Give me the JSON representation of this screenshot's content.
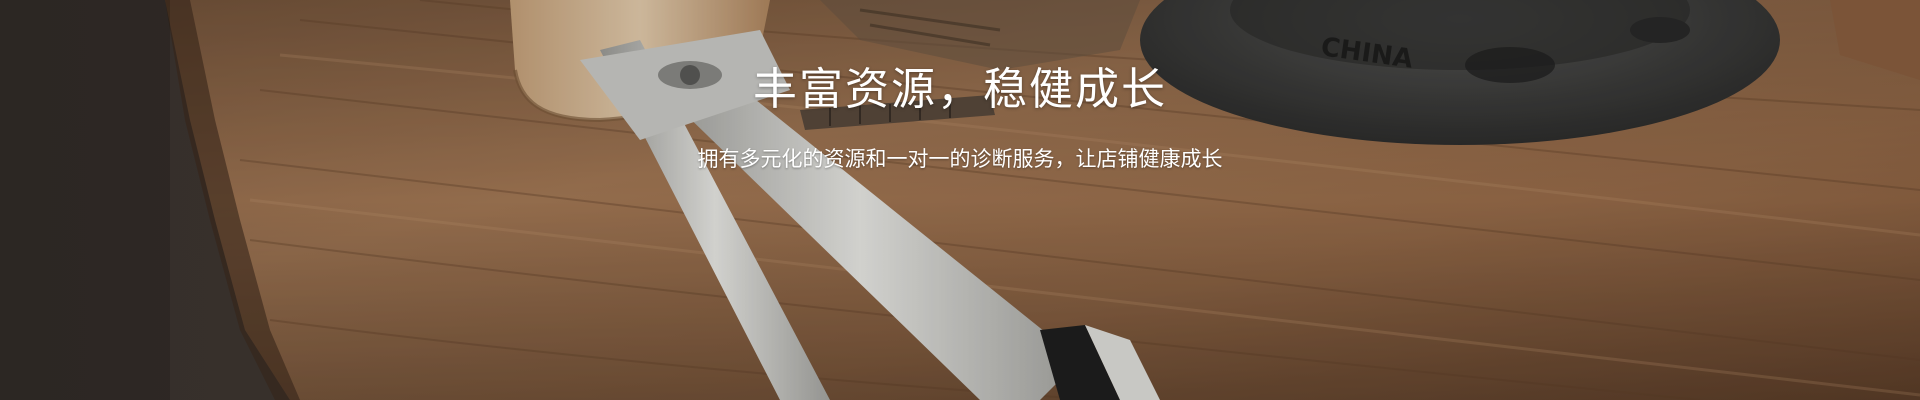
{
  "banner": {
    "title": "丰富资源，稳健成长",
    "subtitle": "拥有多元化的资源和一对一的诊断服务，让店铺健康成长",
    "background_image": "wooden-table-with-pliers-and-pipe-flange",
    "colors": {
      "text": "#ffffff",
      "wall": "#4a4039",
      "wood_light": "#a97e5a",
      "wood_dark": "#5e3f28",
      "metal": "#d9d9d6",
      "flange": "#3c3c3b"
    }
  }
}
